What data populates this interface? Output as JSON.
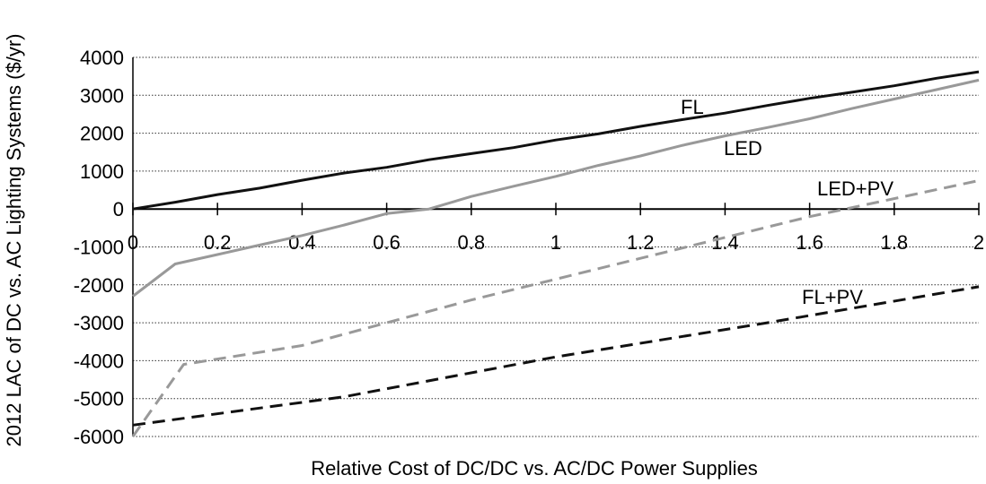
{
  "chart_data": {
    "type": "line",
    "xlabel": "Relative Cost of DC/DC vs. AC/DC Power Supplies",
    "ylabel": "2012 LAC of DC vs. AC Lighting Systems ($/yr)",
    "xlim": [
      0,
      2
    ],
    "ylim": [
      -6000,
      4000
    ],
    "x_ticks": [
      "0",
      "0.2",
      "0.4",
      "0.6",
      "0.8",
      "1",
      "1.2",
      "1.4",
      "1.6",
      "1.8",
      "2"
    ],
    "y_ticks": [
      "4000",
      "3000",
      "2000",
      "1000",
      "0",
      "-1000",
      "-2000",
      "-3000",
      "-4000",
      "-5000",
      "-6000"
    ],
    "grid": "horizontal dotted",
    "series": [
      {
        "name": "FL",
        "color": "#111111",
        "style": "solid",
        "points": [
          [
            0,
            0
          ],
          [
            0.1,
            180
          ],
          [
            0.2,
            380
          ],
          [
            0.3,
            550
          ],
          [
            0.4,
            760
          ],
          [
            0.5,
            950
          ],
          [
            0.6,
            1100
          ],
          [
            0.7,
            1300
          ],
          [
            0.8,
            1460
          ],
          [
            0.9,
            1620
          ],
          [
            1.0,
            1820
          ],
          [
            1.1,
            1980
          ],
          [
            1.2,
            2180
          ],
          [
            1.3,
            2360
          ],
          [
            1.4,
            2530
          ],
          [
            1.5,
            2730
          ],
          [
            1.6,
            2920
          ],
          [
            1.7,
            3080
          ],
          [
            1.8,
            3250
          ],
          [
            1.9,
            3450
          ],
          [
            2.0,
            3620
          ]
        ]
      },
      {
        "name": "LED",
        "color": "#999999",
        "style": "solid",
        "points": [
          [
            0,
            -2300
          ],
          [
            0.1,
            -1450
          ],
          [
            0.2,
            -1200
          ],
          [
            0.3,
            -950
          ],
          [
            0.4,
            -700
          ],
          [
            0.5,
            -420
          ],
          [
            0.6,
            -120
          ],
          [
            0.7,
            0
          ],
          [
            0.8,
            330
          ],
          [
            0.9,
            600
          ],
          [
            1.0,
            860
          ],
          [
            1.1,
            1150
          ],
          [
            1.2,
            1400
          ],
          [
            1.3,
            1680
          ],
          [
            1.4,
            1930
          ],
          [
            1.5,
            2150
          ],
          [
            1.6,
            2380
          ],
          [
            1.7,
            2650
          ],
          [
            1.8,
            2900
          ],
          [
            1.9,
            3150
          ],
          [
            2.0,
            3400
          ]
        ]
      },
      {
        "name": "LED+PV",
        "color": "#999999",
        "style": "dashed",
        "points": [
          [
            0,
            -6000
          ],
          [
            0.12,
            -4100
          ],
          [
            0.4,
            -3600
          ],
          [
            0.8,
            -2400
          ],
          [
            1.2,
            -1300
          ],
          [
            1.6,
            -200
          ],
          [
            2.0,
            750
          ]
        ]
      },
      {
        "name": "FL+PV",
        "color": "#111111",
        "style": "dashed",
        "points": [
          [
            0,
            -5700
          ],
          [
            0.5,
            -4950
          ],
          [
            1.0,
            -3900
          ],
          [
            1.5,
            -3000
          ],
          [
            2.0,
            -2050
          ]
        ]
      }
    ]
  }
}
